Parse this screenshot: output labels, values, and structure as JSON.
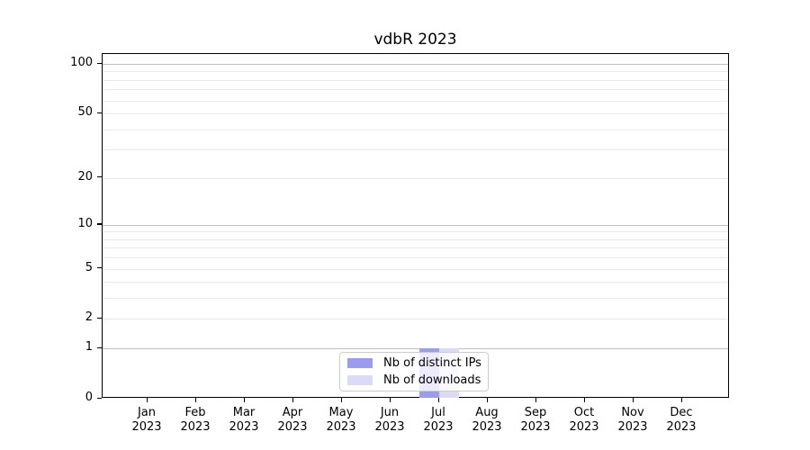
{
  "chart_data": {
    "type": "bar",
    "title": "vdbR 2023",
    "categories": [
      "Jan 2023",
      "Feb 2023",
      "Mar 2023",
      "Apr 2023",
      "May 2023",
      "Jun 2023",
      "Jul 2023",
      "Aug 2023",
      "Sep 2023",
      "Oct 2023",
      "Nov 2023",
      "Dec 2023"
    ],
    "x": {
      "months": [
        "Jan",
        "Feb",
        "Mar",
        "Apr",
        "May",
        "Jun",
        "Jul",
        "Aug",
        "Sep",
        "Oct",
        "Nov",
        "Dec"
      ],
      "year": "2023"
    },
    "series": [
      {
        "name": "Nb of distinct IPs",
        "color": "#9c9cee",
        "values": [
          0,
          0,
          0,
          0,
          0,
          0,
          1,
          0,
          0,
          0,
          0,
          0
        ]
      },
      {
        "name": "Nb of downloads",
        "color": "#dbdbf7",
        "values": [
          0,
          0,
          0,
          0,
          0,
          0,
          1,
          0,
          0,
          0,
          0,
          0
        ]
      }
    ],
    "yaxis": {
      "scale": "log1p",
      "tick_values": [
        0,
        1,
        2,
        5,
        10,
        20,
        50,
        100
      ],
      "tick_labels": [
        "0",
        "1",
        "2",
        "5",
        "10",
        "20",
        "50",
        "100"
      ],
      "minor_grid_values": [
        3,
        4,
        6,
        7,
        8,
        9,
        30,
        40,
        60,
        70,
        80,
        90
      ],
      "major_grid_values": [
        1,
        10,
        100
      ],
      "ylim": [
        0,
        115
      ]
    },
    "grid": {
      "horizontal": true,
      "vertical": false,
      "major_color": "#c0c0c0",
      "minor_color": "#e9e9e9"
    },
    "legend_position": "lower center",
    "xlabel": "",
    "ylabel": ""
  }
}
